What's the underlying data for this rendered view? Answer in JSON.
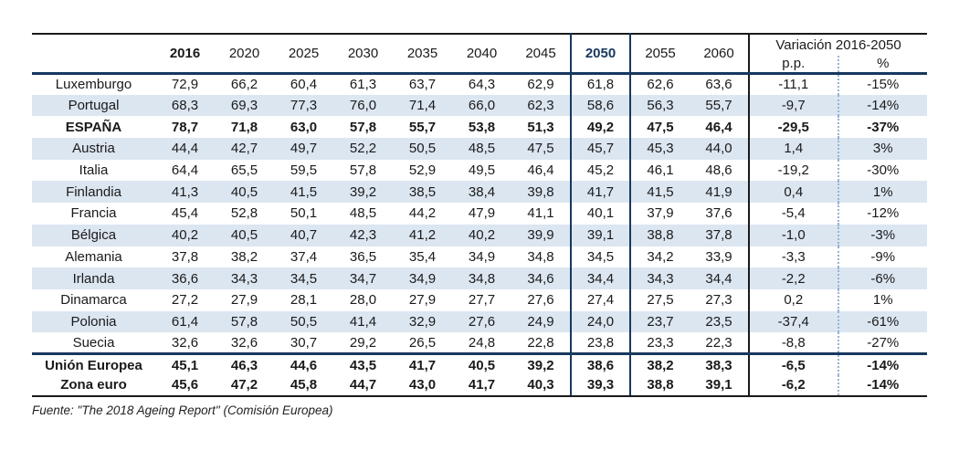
{
  "colors": {
    "navy": "#17375e",
    "stripe": "#dce6f1",
    "dotted_divider": "#95b3d7",
    "ink": "#1a1a1a"
  },
  "table": {
    "corner_label": "",
    "year_columns": [
      "2016",
      "2020",
      "2025",
      "2030",
      "2035",
      "2040",
      "2045",
      "2050",
      "2055",
      "2060"
    ],
    "bold_black_year": "2016",
    "bold_navy_year": "2050",
    "variation_header": "Variación 2016-2050",
    "variation_subcolumns": [
      "p.p.",
      "%"
    ],
    "rows": [
      {
        "name": "Luxemburgo",
        "values": [
          "72,9",
          "66,2",
          "60,4",
          "61,3",
          "63,7",
          "64,3",
          "62,9",
          "61,8",
          "62,6",
          "63,6"
        ],
        "pp": "-11,1",
        "pct": "-15%",
        "bold": false
      },
      {
        "name": "Portugal",
        "values": [
          "68,3",
          "69,3",
          "77,3",
          "76,0",
          "71,4",
          "66,0",
          "62,3",
          "58,6",
          "56,3",
          "55,7"
        ],
        "pp": "-9,7",
        "pct": "-14%",
        "bold": false
      },
      {
        "name": "ESPAÑA",
        "values": [
          "78,7",
          "71,8",
          "63,0",
          "57,8",
          "55,7",
          "53,8",
          "51,3",
          "49,2",
          "47,5",
          "46,4"
        ],
        "pp": "-29,5",
        "pct": "-37%",
        "bold": true
      },
      {
        "name": "Austria",
        "values": [
          "44,4",
          "42,7",
          "49,7",
          "52,2",
          "50,5",
          "48,5",
          "47,5",
          "45,7",
          "45,3",
          "44,0"
        ],
        "pp": "1,4",
        "pct": "3%",
        "bold": false
      },
      {
        "name": "Italia",
        "values": [
          "64,4",
          "65,5",
          "59,5",
          "57,8",
          "52,9",
          "49,5",
          "46,4",
          "45,2",
          "46,1",
          "48,6"
        ],
        "pp": "-19,2",
        "pct": "-30%",
        "bold": false
      },
      {
        "name": "Finlandia",
        "values": [
          "41,3",
          "40,5",
          "41,5",
          "39,2",
          "38,5",
          "38,4",
          "39,8",
          "41,7",
          "41,5",
          "41,9"
        ],
        "pp": "0,4",
        "pct": "1%",
        "bold": false
      },
      {
        "name": "Francia",
        "values": [
          "45,4",
          "52,8",
          "50,1",
          "48,5",
          "44,2",
          "47,9",
          "41,1",
          "40,1",
          "37,9",
          "37,6"
        ],
        "pp": "-5,4",
        "pct": "-12%",
        "bold": false
      },
      {
        "name": "Bélgica",
        "values": [
          "40,2",
          "40,5",
          "40,7",
          "42,3",
          "41,2",
          "40,2",
          "39,9",
          "39,1",
          "38,8",
          "37,8"
        ],
        "pp": "-1,0",
        "pct": "-3%",
        "bold": false
      },
      {
        "name": "Alemania",
        "values": [
          "37,8",
          "38,2",
          "37,4",
          "36,5",
          "35,4",
          "34,9",
          "34,8",
          "34,5",
          "34,2",
          "33,9"
        ],
        "pp": "-3,3",
        "pct": "-9%",
        "bold": false
      },
      {
        "name": "Irlanda",
        "values": [
          "36,6",
          "34,3",
          "34,5",
          "34,7",
          "34,9",
          "34,8",
          "34,6",
          "34,4",
          "34,3",
          "34,4"
        ],
        "pp": "-2,2",
        "pct": "-6%",
        "bold": false
      },
      {
        "name": "Dinamarca",
        "values": [
          "27,2",
          "27,9",
          "28,1",
          "28,0",
          "27,9",
          "27,7",
          "27,6",
          "27,4",
          "27,5",
          "27,3"
        ],
        "pp": "0,2",
        "pct": "1%",
        "bold": false
      },
      {
        "name": "Polonia",
        "values": [
          "61,4",
          "57,8",
          "50,5",
          "41,4",
          "32,9",
          "27,6",
          "24,9",
          "24,0",
          "23,7",
          "23,5"
        ],
        "pp": "-37,4",
        "pct": "-61%",
        "bold": false
      },
      {
        "name": "Suecia",
        "values": [
          "32,6",
          "32,6",
          "30,7",
          "29,2",
          "26,5",
          "24,8",
          "22,8",
          "23,8",
          "23,3",
          "22,3"
        ],
        "pp": "-8,8",
        "pct": "-27%",
        "bold": false
      }
    ],
    "total_rows": [
      {
        "name": "Unión Europea",
        "values": [
          "45,1",
          "46,3",
          "44,6",
          "43,5",
          "41,7",
          "40,5",
          "39,2",
          "38,6",
          "38,2",
          "38,3"
        ],
        "pp": "-6,5",
        "pct": "-14%",
        "bold": true
      },
      {
        "name": "Zona euro",
        "values": [
          "45,6",
          "47,2",
          "45,8",
          "44,7",
          "43,0",
          "41,7",
          "40,3",
          "39,3",
          "38,8",
          "39,1"
        ],
        "pp": "-6,2",
        "pct": "-14%",
        "bold": true
      }
    ]
  },
  "footer": {
    "source_text": "Fuente: \"The 2018 Ageing Report\" (Comisión Europea)"
  }
}
